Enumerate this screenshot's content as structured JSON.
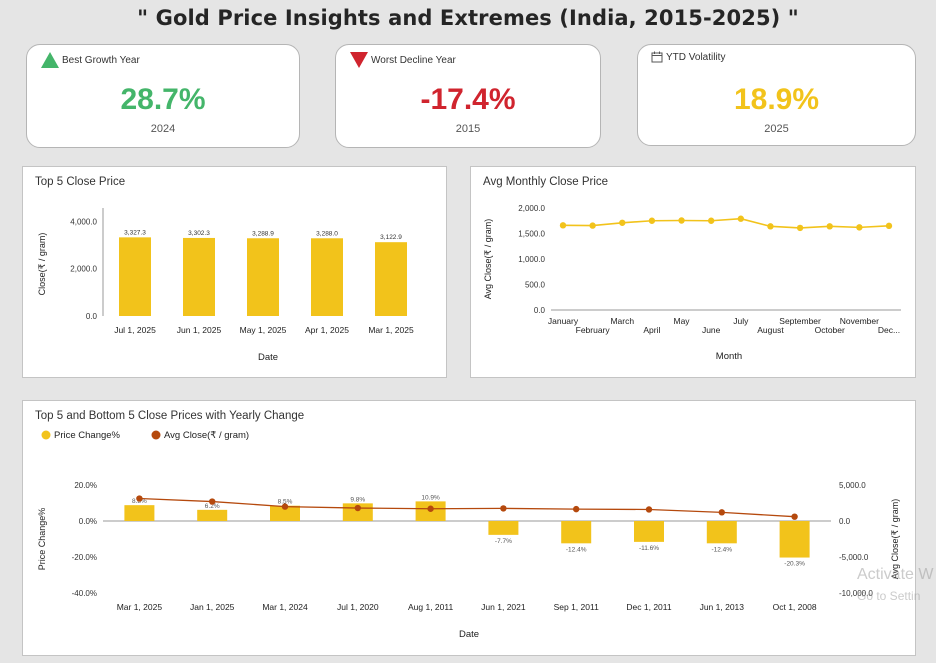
{
  "header": {
    "title": "\" Gold Price Insights and Extremes (India, 2015-2025) \""
  },
  "colors": {
    "accent_yellow": "#f2c31b",
    "dot_brown": "#b5490d",
    "green": "#44b56a",
    "red": "#d0242e",
    "gold_text": "#f2c31b"
  },
  "kpis": [
    {
      "label": "Best Growth Year",
      "icon": "triangle-up-icon",
      "value": "28.7%",
      "sub": "2024",
      "color": "#44b56a"
    },
    {
      "label": "Worst Decline Year",
      "icon": "triangle-down-icon",
      "value": "-17.4%",
      "sub": "2015",
      "color": "#d0242e"
    },
    {
      "label": "YTD Volatility",
      "icon": "calendar-icon",
      "value": "18.9%",
      "sub": "2025",
      "color": "#f2c31b"
    }
  ],
  "watermark": {
    "line1": "Activate W",
    "line2": "Go to Settin"
  },
  "chart_data": [
    {
      "type": "bar",
      "title": "Top 5 Close Price",
      "xlabel": "Date",
      "ylabel": "Close(₹ / gram)",
      "categories": [
        "Jul 1, 2025",
        "Jun 1, 2025",
        "May 1, 2025",
        "Apr 1, 2025",
        "Mar 1, 2025"
      ],
      "values": [
        3327.3,
        3302.3,
        3288.9,
        3288.0,
        3122.9
      ],
      "data_labels": [
        "3,327.3",
        "3,302.3",
        "3,288.9",
        "3,288.0",
        "3,122.9"
      ],
      "yticks": [
        "0.0",
        "2,000.0",
        "4,000.0"
      ],
      "ylim": [
        0,
        4400
      ]
    },
    {
      "type": "line",
      "title": "Avg Monthly Close Price",
      "xlabel": "Month",
      "ylabel": "Avg Close(₹ / gram)",
      "categories": [
        "January",
        "February",
        "March",
        "April",
        "May",
        "June",
        "July",
        "August",
        "September",
        "October",
        "November",
        "Dec..."
      ],
      "values": [
        1660,
        1655,
        1710,
        1750,
        1755,
        1750,
        1790,
        1640,
        1610,
        1640,
        1620,
        1650
      ],
      "yticks": [
        "0.0",
        "500.0",
        "1,000.0",
        "1,500.0",
        "2,000.0"
      ],
      "ylim": [
        0,
        2000
      ]
    },
    {
      "type": "bar",
      "title": "Top 5 and Bottom 5 Close Prices with Yearly Change",
      "xlabel": "Date",
      "ylabel": "Price Change%",
      "y2label": "Avg Close(₹ / gram)",
      "legend": [
        "Price Change%",
        "Avg Close(₹ / gram)"
      ],
      "categories": [
        "Mar 1, 2025",
        "Jan 1, 2025",
        "Mar 1, 2024",
        "Jul 1, 2020",
        "Aug 1, 2011",
        "Jun 1, 2021",
        "Sep 1, 2011",
        "Dec 1, 2011",
        "Jun 1, 2013",
        "Oct 1, 2008"
      ],
      "series": [
        {
          "name": "Price Change%",
          "values": [
            8.8,
            6.2,
            8.5,
            9.8,
            10.9,
            -7.7,
            -12.4,
            -11.6,
            -12.4,
            -20.3
          ],
          "data_labels": [
            "8.8%",
            "6.2%",
            "8.5%",
            "9.8%",
            "10.9%",
            "-7.7%",
            "-12.4%",
            "-11.6%",
            "-12.4%",
            "-20.3%"
          ]
        },
        {
          "name": "Avg Close(₹ / gram)",
          "values": [
            3122.9,
            2700,
            2000,
            1800,
            1700,
            1750,
            1650,
            1600,
            1200,
            600
          ]
        }
      ],
      "yticks": [
        "-40.0%",
        "-20.0%",
        "0.0%",
        "20.0%"
      ],
      "ylim": [
        -40,
        20
      ],
      "y2ticks": [
        "-10,000.0",
        "-5,000.0",
        "0.0",
        "5,000.0"
      ],
      "y2lim": [
        -10000,
        5000
      ]
    }
  ]
}
